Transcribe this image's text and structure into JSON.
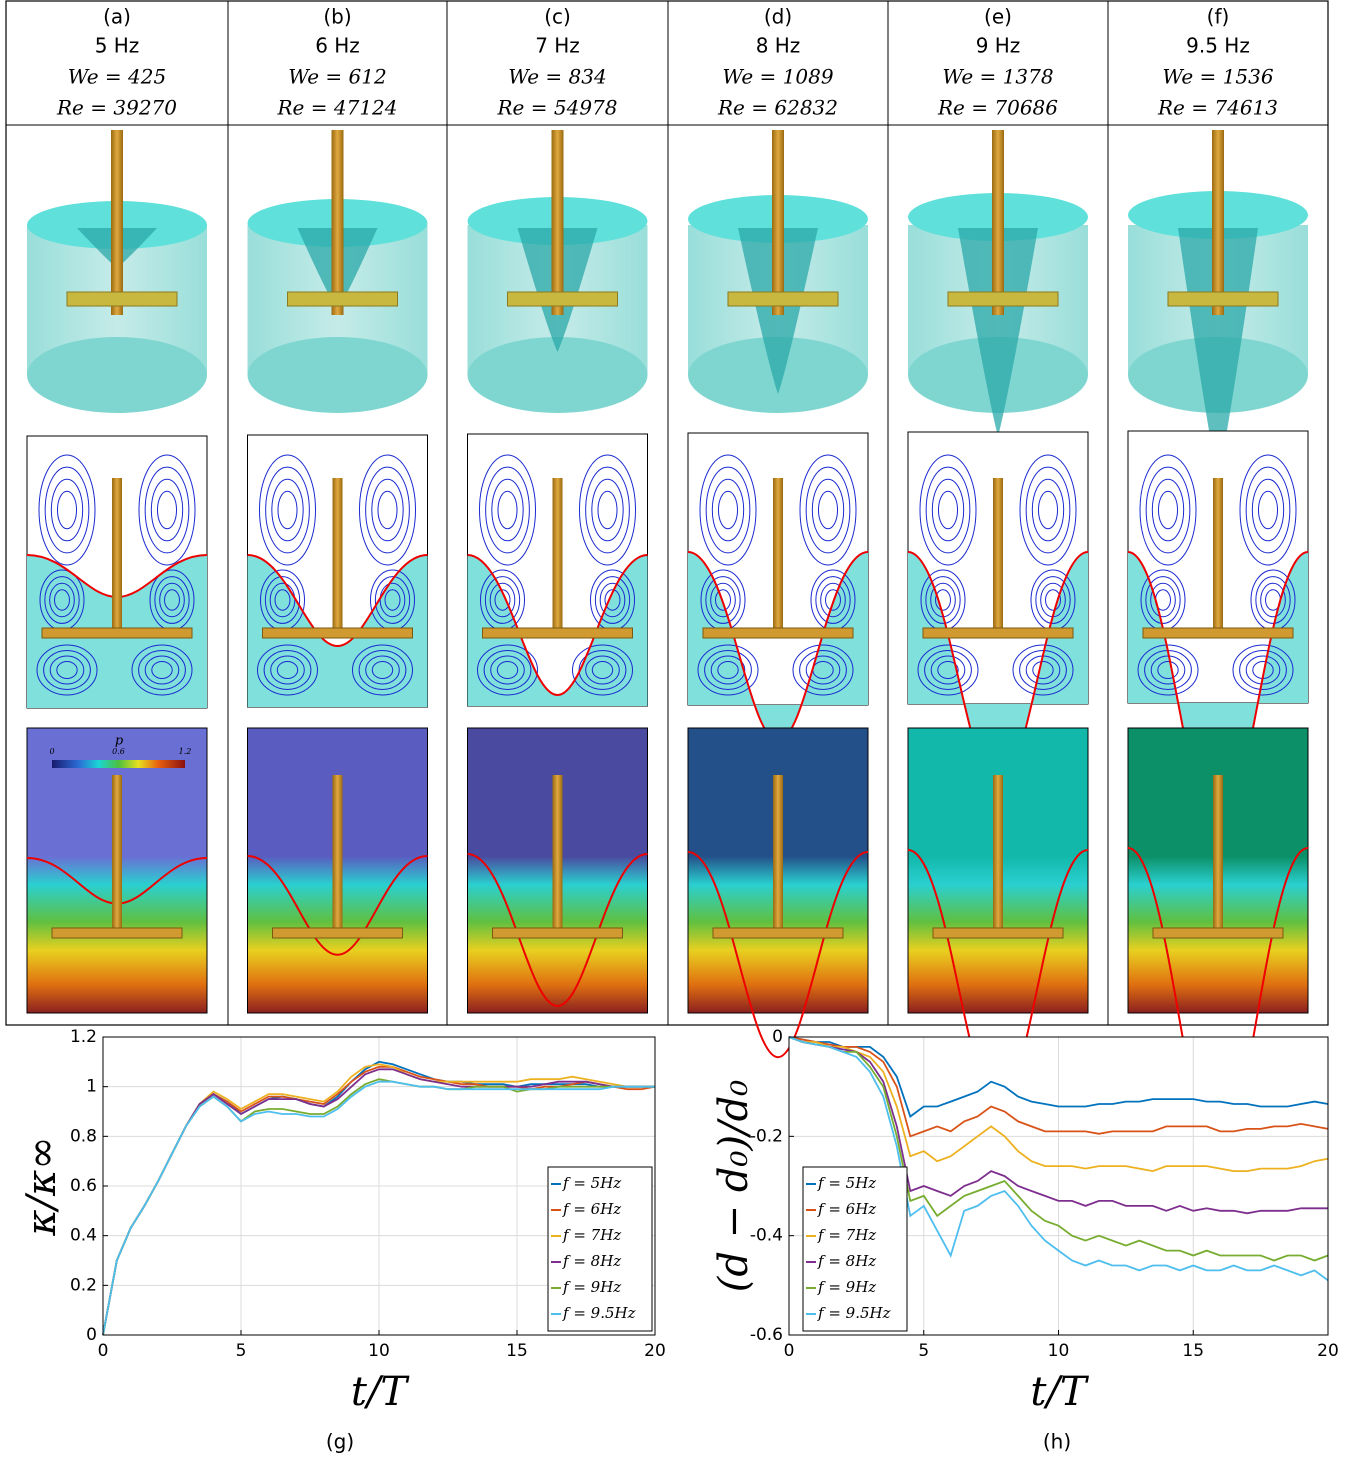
{
  "panels": [
    {
      "label": "(a)",
      "freq": "5 Hz",
      "we": "We = 425",
      "re": "Re = 39270"
    },
    {
      "label": "(b)",
      "freq": "6 Hz",
      "we": "We = 612",
      "re": "Re = 47124"
    },
    {
      "label": "(c)",
      "freq": "7 Hz",
      "we": "We = 834",
      "re": "Re = 54978"
    },
    {
      "label": "(d)",
      "freq": "8 Hz",
      "we": "We = 1089",
      "re": "Re = 62832"
    },
    {
      "label": "(e)",
      "freq": "9 Hz",
      "we": "We = 1378",
      "re": "Re = 70686"
    },
    {
      "label": "(f)",
      "freq": "9.5 Hz",
      "we": "We = 1536",
      "re": "Re = 74613"
    }
  ],
  "colorbar": {
    "label": "p",
    "ticks": [
      0,
      0.6,
      1.2
    ]
  },
  "chart_data": [
    {
      "type": "line",
      "caption": "(g)",
      "xlabel": "t/T",
      "ylabel": "κ/κ∞",
      "xlim": [
        0,
        20
      ],
      "ylim": [
        0,
        1.2
      ],
      "xticks": [
        0,
        5,
        10,
        15,
        20
      ],
      "yticks": [
        0,
        0.2,
        0.4,
        0.6,
        0.8,
        1,
        1.2
      ],
      "grid": true,
      "legend": "lower right",
      "x": [
        0,
        0.5,
        1,
        1.5,
        2,
        2.5,
        3,
        3.5,
        4,
        4.5,
        5,
        5.5,
        6,
        6.5,
        7,
        7.5,
        8,
        8.5,
        9,
        9.5,
        10,
        10.5,
        11,
        11.5,
        12,
        12.5,
        13,
        13.5,
        14,
        14.5,
        15,
        15.5,
        16,
        16.5,
        17,
        17.5,
        18,
        18.5,
        19,
        19.5,
        20
      ],
      "series": [
        {
          "name": "f = 5Hz",
          "color": "#0072bd",
          "values": [
            0,
            0.3,
            0.43,
            0.52,
            0.62,
            0.73,
            0.84,
            0.93,
            0.97,
            0.94,
            0.89,
            0.92,
            0.95,
            0.96,
            0.95,
            0.93,
            0.92,
            0.96,
            1.02,
            1.07,
            1.1,
            1.09,
            1.07,
            1.05,
            1.03,
            1.02,
            1.02,
            1.01,
            1.01,
            1.01,
            1.0,
            1.01,
            1.01,
            1.01,
            1.01,
            1.01,
            1.0,
            1.0,
            1.0,
            1.0,
            1.0
          ]
        },
        {
          "name": "f = 6Hz",
          "color": "#d95319",
          "values": [
            0,
            0.3,
            0.43,
            0.52,
            0.62,
            0.73,
            0.84,
            0.93,
            0.97,
            0.94,
            0.9,
            0.93,
            0.96,
            0.96,
            0.95,
            0.94,
            0.93,
            0.97,
            1.02,
            1.06,
            1.08,
            1.08,
            1.06,
            1.04,
            1.03,
            1.02,
            1.01,
            1.01,
            1.0,
            1.0,
            1.0,
            0.99,
            1.0,
            1.0,
            1.01,
            1.02,
            1.01,
            1.0,
            0.99,
            0.99,
            1.0
          ]
        },
        {
          "name": "f = 7Hz",
          "color": "#edb120",
          "values": [
            0,
            0.3,
            0.43,
            0.52,
            0.62,
            0.73,
            0.84,
            0.93,
            0.98,
            0.95,
            0.91,
            0.94,
            0.97,
            0.97,
            0.96,
            0.95,
            0.94,
            0.98,
            1.04,
            1.08,
            1.09,
            1.08,
            1.05,
            1.03,
            1.02,
            1.02,
            1.02,
            1.02,
            1.02,
            1.02,
            1.02,
            1.03,
            1.03,
            1.03,
            1.04,
            1.03,
            1.02,
            1.01,
            1.0,
            1.0,
            1.0
          ]
        },
        {
          "name": "f = 8Hz",
          "color": "#7e2f8e",
          "values": [
            0,
            0.3,
            0.43,
            0.52,
            0.62,
            0.73,
            0.84,
            0.93,
            0.97,
            0.93,
            0.89,
            0.92,
            0.95,
            0.95,
            0.95,
            0.93,
            0.92,
            0.95,
            1.0,
            1.05,
            1.07,
            1.07,
            1.05,
            1.03,
            1.02,
            1.01,
            1.0,
            1.0,
            1.0,
            1.0,
            1.0,
            1.0,
            1.01,
            1.02,
            1.02,
            1.02,
            1.01,
            1.0,
            1.0,
            1.0,
            1.0
          ]
        },
        {
          "name": "f = 9Hz",
          "color": "#77ac30",
          "values": [
            0,
            0.3,
            0.43,
            0.52,
            0.62,
            0.73,
            0.84,
            0.92,
            0.96,
            0.92,
            0.86,
            0.9,
            0.91,
            0.91,
            0.9,
            0.89,
            0.89,
            0.92,
            0.97,
            1.01,
            1.03,
            1.02,
            1.01,
            1.0,
            1.0,
            0.99,
            0.99,
            1.0,
            1.0,
            1.0,
            0.98,
            0.99,
            0.99,
            1.0,
            1.0,
            1.0,
            1.0,
            1.0,
            1.0,
            1.0,
            1.0
          ]
        },
        {
          "name": "f = 9.5Hz",
          "color": "#4dbeee",
          "values": [
            0,
            0.3,
            0.43,
            0.52,
            0.62,
            0.73,
            0.84,
            0.92,
            0.96,
            0.92,
            0.86,
            0.89,
            0.9,
            0.89,
            0.89,
            0.88,
            0.88,
            0.91,
            0.96,
            1.0,
            1.02,
            1.02,
            1.01,
            1.0,
            1.0,
            0.99,
            0.99,
            0.99,
            0.99,
            0.99,
            0.99,
            0.99,
            0.99,
            0.99,
            0.99,
            0.99,
            0.99,
            1.0,
            1.0,
            1.0,
            1.0
          ]
        }
      ]
    },
    {
      "type": "line",
      "caption": "(h)",
      "xlabel": "t/T",
      "ylabel": "(d − d₀)/d₀",
      "xlim": [
        0,
        20
      ],
      "ylim": [
        -0.6,
        0
      ],
      "xticks": [
        0,
        5,
        10,
        15,
        20
      ],
      "yticks": [
        -0.6,
        -0.4,
        -0.2,
        0
      ],
      "grid": true,
      "legend": "lower left",
      "x": [
        0,
        0.5,
        1,
        1.5,
        2,
        2.5,
        3,
        3.5,
        4,
        4.5,
        5,
        5.5,
        6,
        6.5,
        7,
        7.5,
        8,
        8.5,
        9,
        9.5,
        10,
        10.5,
        11,
        11.5,
        12,
        12.5,
        13,
        13.5,
        14,
        14.5,
        15,
        15.5,
        16,
        16.5,
        17,
        17.5,
        18,
        18.5,
        19,
        19.5,
        20
      ],
      "series": [
        {
          "name": "f = 5Hz",
          "color": "#0072bd",
          "values": [
            0,
            -0.005,
            -0.01,
            -0.01,
            -0.02,
            -0.02,
            -0.02,
            -0.04,
            -0.08,
            -0.16,
            -0.14,
            -0.14,
            -0.13,
            -0.12,
            -0.11,
            -0.09,
            -0.1,
            -0.12,
            -0.13,
            -0.135,
            -0.14,
            -0.14,
            -0.14,
            -0.135,
            -0.135,
            -0.13,
            -0.13,
            -0.125,
            -0.125,
            -0.125,
            -0.125,
            -0.13,
            -0.13,
            -0.135,
            -0.135,
            -0.14,
            -0.14,
            -0.14,
            -0.135,
            -0.13,
            -0.135
          ]
        },
        {
          "name": "f = 6Hz",
          "color": "#d95319",
          "values": [
            0,
            -0.005,
            -0.01,
            -0.015,
            -0.02,
            -0.02,
            -0.03,
            -0.05,
            -0.1,
            -0.2,
            -0.19,
            -0.18,
            -0.19,
            -0.17,
            -0.16,
            -0.14,
            -0.15,
            -0.17,
            -0.18,
            -0.19,
            -0.19,
            -0.19,
            -0.19,
            -0.195,
            -0.19,
            -0.19,
            -0.19,
            -0.19,
            -0.18,
            -0.18,
            -0.18,
            -0.18,
            -0.19,
            -0.19,
            -0.185,
            -0.185,
            -0.18,
            -0.18,
            -0.175,
            -0.18,
            -0.185
          ]
        },
        {
          "name": "f = 7Hz",
          "color": "#edb120",
          "values": [
            0,
            -0.01,
            -0.01,
            -0.02,
            -0.02,
            -0.03,
            -0.04,
            -0.07,
            -0.14,
            -0.24,
            -0.23,
            -0.25,
            -0.24,
            -0.22,
            -0.2,
            -0.18,
            -0.2,
            -0.23,
            -0.25,
            -0.26,
            -0.26,
            -0.26,
            -0.265,
            -0.26,
            -0.26,
            -0.26,
            -0.265,
            -0.27,
            -0.26,
            -0.26,
            -0.26,
            -0.26,
            -0.265,
            -0.27,
            -0.27,
            -0.265,
            -0.265,
            -0.265,
            -0.26,
            -0.25,
            -0.245
          ]
        },
        {
          "name": "f = 8Hz",
          "color": "#7e2f8e",
          "values": [
            0,
            -0.01,
            -0.015,
            -0.02,
            -0.025,
            -0.03,
            -0.05,
            -0.09,
            -0.18,
            -0.31,
            -0.3,
            -0.31,
            -0.32,
            -0.3,
            -0.29,
            -0.27,
            -0.28,
            -0.3,
            -0.31,
            -0.32,
            -0.33,
            -0.33,
            -0.34,
            -0.33,
            -0.33,
            -0.34,
            -0.34,
            -0.34,
            -0.35,
            -0.34,
            -0.35,
            -0.345,
            -0.35,
            -0.35,
            -0.355,
            -0.35,
            -0.35,
            -0.35,
            -0.345,
            -0.345,
            -0.345
          ]
        },
        {
          "name": "f = 9Hz",
          "color": "#77ac30",
          "values": [
            0,
            -0.01,
            -0.015,
            -0.02,
            -0.03,
            -0.03,
            -0.06,
            -0.1,
            -0.2,
            -0.33,
            -0.32,
            -0.36,
            -0.34,
            -0.32,
            -0.31,
            -0.3,
            -0.29,
            -0.32,
            -0.35,
            -0.37,
            -0.38,
            -0.4,
            -0.41,
            -0.4,
            -0.41,
            -0.42,
            -0.41,
            -0.42,
            -0.43,
            -0.43,
            -0.44,
            -0.43,
            -0.44,
            -0.44,
            -0.44,
            -0.44,
            -0.45,
            -0.44,
            -0.44,
            -0.45,
            -0.44
          ]
        },
        {
          "name": "f = 9.5Hz",
          "color": "#4dbeee",
          "values": [
            0,
            -0.01,
            -0.015,
            -0.02,
            -0.03,
            -0.04,
            -0.07,
            -0.12,
            -0.22,
            -0.36,
            -0.34,
            -0.39,
            -0.44,
            -0.35,
            -0.34,
            -0.32,
            -0.31,
            -0.34,
            -0.38,
            -0.41,
            -0.43,
            -0.45,
            -0.46,
            -0.45,
            -0.46,
            -0.46,
            -0.47,
            -0.46,
            -0.46,
            -0.47,
            -0.46,
            -0.47,
            -0.47,
            -0.46,
            -0.47,
            -0.47,
            -0.46,
            -0.47,
            -0.48,
            -0.47,
            -0.49
          ]
        }
      ]
    }
  ]
}
